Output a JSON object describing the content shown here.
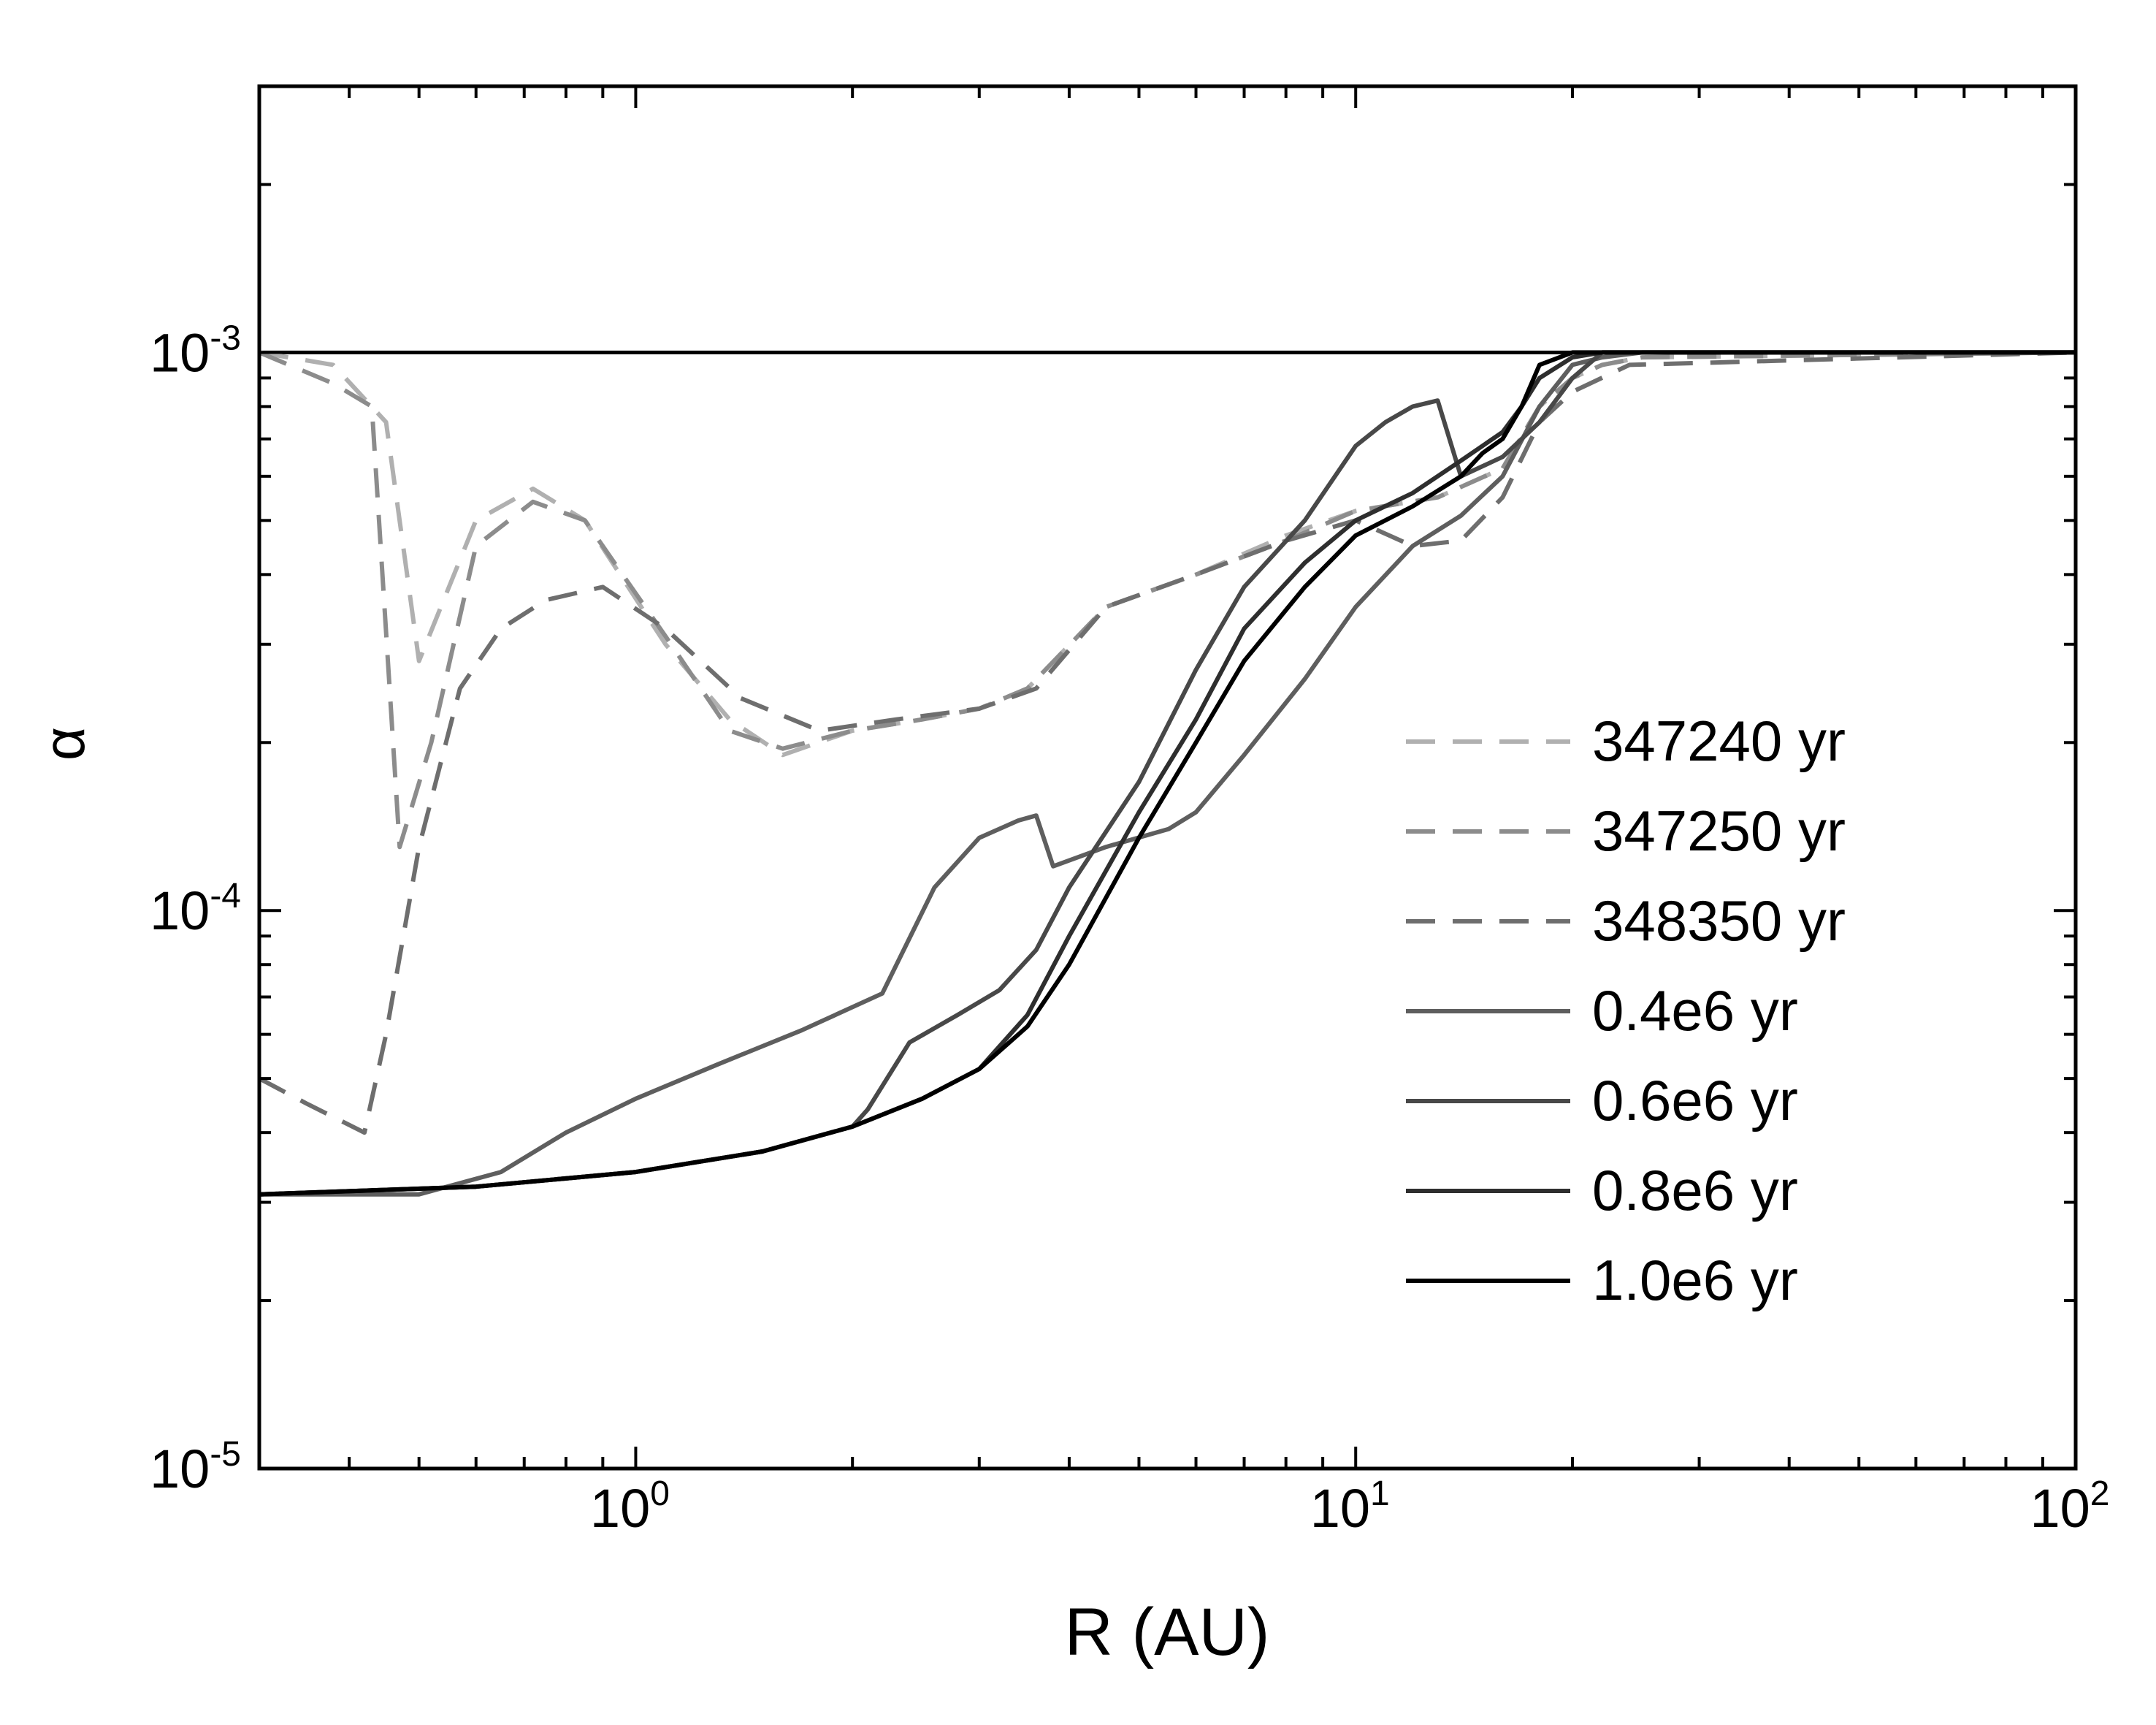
{
  "chart_data": {
    "type": "line",
    "title": "",
    "xlabel": "R (AU)",
    "ylabel": "α",
    "xscale": "log",
    "yscale": "log",
    "xlim": [
      0.3,
      100
    ],
    "ylim": [
      1e-05,
      0.003
    ],
    "grid": false,
    "legend_position": "right-center",
    "x_ticks": [
      {
        "value": 1,
        "base": "10",
        "exp": "0"
      },
      {
        "value": 10,
        "base": "10",
        "exp": "1"
      },
      {
        "value": 100,
        "base": "10",
        "exp": "2"
      }
    ],
    "y_ticks": [
      {
        "value": 1e-05,
        "base": "10",
        "exp": "-5"
      },
      {
        "value": 0.0001,
        "base": "10",
        "exp": "-4"
      },
      {
        "value": 0.001,
        "base": "10",
        "exp": "-3"
      }
    ],
    "reference_line": {
      "y": 0.001,
      "color": "#000000"
    },
    "series": [
      {
        "name": "347240 yr",
        "color": "#b0b0b0",
        "dashed": true,
        "x": [
          0.3,
          0.38,
          0.45,
          0.5,
          0.6,
          0.72,
          0.85,
          1.1,
          1.35,
          1.6,
          2.0,
          2.5,
          3.0,
          3.5,
          4.5,
          6,
          8,
          10,
          13,
          16,
          18,
          20,
          22,
          25,
          100
        ],
        "y": [
          0.001,
          0.00095,
          0.00075,
          0.00028,
          0.0005,
          0.00057,
          0.0005,
          0.0003,
          0.00022,
          0.00019,
          0.00021,
          0.00022,
          0.00023,
          0.00025,
          0.00035,
          0.0004,
          0.00047,
          0.00052,
          0.00055,
          0.00062,
          0.0008,
          0.0009,
          0.00095,
          0.00098,
          0.001
        ]
      },
      {
        "name": "347250 yr",
        "color": "#8c8c8c",
        "dashed": true,
        "x": [
          0.3,
          0.38,
          0.43,
          0.47,
          0.52,
          0.6,
          0.72,
          0.85,
          1.1,
          1.35,
          1.6,
          2.0,
          2.5,
          3.0,
          3.5,
          4.5,
          6,
          8,
          10,
          13,
          16,
          18,
          20,
          22,
          25,
          100
        ],
        "y": [
          0.001,
          0.00088,
          0.0008,
          0.00013,
          0.0002,
          0.00045,
          0.00054,
          0.0005,
          0.00031,
          0.00021,
          0.000195,
          0.00021,
          0.00022,
          0.00023,
          0.00025,
          0.00035,
          0.0004,
          0.00046,
          0.00052,
          0.00055,
          0.00062,
          0.0008,
          0.0009,
          0.00095,
          0.00098,
          0.001
        ]
      },
      {
        "name": "348350 yr",
        "color": "#6e6e6e",
        "dashed": true,
        "x": [
          0.3,
          0.35,
          0.42,
          0.45,
          0.5,
          0.57,
          0.65,
          0.75,
          0.9,
          1.1,
          1.4,
          1.8,
          2.3,
          3.0,
          3.6,
          4.5,
          6,
          8,
          10,
          12,
          14,
          16,
          18,
          20,
          24,
          100
        ],
        "y": [
          5e-05,
          4.5e-05,
          4e-05,
          6e-05,
          0.00013,
          0.00025,
          0.00032,
          0.00036,
          0.00038,
          0.00032,
          0.00024,
          0.00021,
          0.00022,
          0.00023,
          0.00025,
          0.00035,
          0.0004,
          0.00046,
          0.0005,
          0.00045,
          0.00046,
          0.00055,
          0.00075,
          0.00085,
          0.00095,
          0.001
        ]
      },
      {
        "name": "0.4e6 yr",
        "color": "#5e5e5e",
        "dashed": false,
        "x": [
          0.3,
          0.5,
          0.65,
          0.8,
          1.0,
          1.3,
          1.7,
          2.2,
          2.6,
          3.0,
          3.4,
          3.6,
          3.8,
          4.5,
          5.5,
          6.0,
          7.0,
          8.5,
          10,
          12,
          14,
          16,
          18,
          20,
          22,
          25,
          100
        ],
        "y": [
          3.1e-05,
          3.1e-05,
          3.4e-05,
          4e-05,
          4.6e-05,
          5.3e-05,
          6.1e-05,
          7.1e-05,
          0.00011,
          0.000135,
          0.000145,
          0.000148,
          0.00012,
          0.00013,
          0.00014,
          0.00015,
          0.00019,
          0.00026,
          0.00035,
          0.00045,
          0.00051,
          0.0006,
          0.0008,
          0.00095,
          0.00098,
          0.001,
          0.001
        ]
      },
      {
        "name": "0.6e6 yr",
        "color": "#484848",
        "dashed": false,
        "x": [
          0.3,
          0.6,
          1.0,
          1.5,
          2.0,
          2.1,
          2.4,
          2.8,
          3.2,
          3.6,
          4.0,
          5.0,
          6.0,
          7.0,
          8.5,
          10,
          11,
          12,
          13,
          14,
          16,
          18,
          20,
          22,
          100
        ],
        "y": [
          3.1e-05,
          3.2e-05,
          3.4e-05,
          3.7e-05,
          4.1e-05,
          4.4e-05,
          5.8e-05,
          6.5e-05,
          7.2e-05,
          8.5e-05,
          0.00011,
          0.00017,
          0.00027,
          0.00038,
          0.0005,
          0.00068,
          0.00075,
          0.0008,
          0.00082,
          0.0006,
          0.00065,
          0.00075,
          0.0009,
          0.001,
          0.001
        ]
      },
      {
        "name": "0.8e6 yr",
        "color": "#2e2e2e",
        "dashed": false,
        "x": [
          0.3,
          0.6,
          1.0,
          1.5,
          2.0,
          2.5,
          3.0,
          3.5,
          4.0,
          5.0,
          6.0,
          7.0,
          8.5,
          10,
          12,
          14,
          16,
          17,
          18,
          20,
          22,
          100
        ],
        "y": [
          3.1e-05,
          3.2e-05,
          3.4e-05,
          3.7e-05,
          4.1e-05,
          4.6e-05,
          5.2e-05,
          6.5e-05,
          9e-05,
          0.00015,
          0.00022,
          0.00032,
          0.00042,
          0.0005,
          0.00056,
          0.00064,
          0.00072,
          0.0008,
          0.0009,
          0.00098,
          0.001,
          0.001
        ]
      },
      {
        "name": "1.0e6 yr",
        "color": "#000000",
        "dashed": false,
        "x": [
          0.3,
          0.6,
          1.0,
          1.5,
          2.0,
          2.5,
          3.0,
          3.5,
          4.0,
          5.0,
          6.0,
          7.0,
          8.5,
          10,
          12,
          14,
          15,
          16,
          17,
          18,
          20,
          22,
          100
        ],
        "y": [
          3.1e-05,
          3.2e-05,
          3.4e-05,
          3.7e-05,
          4.1e-05,
          4.6e-05,
          5.2e-05,
          6.2e-05,
          8e-05,
          0.000135,
          0.0002,
          0.00028,
          0.00038,
          0.00047,
          0.00053,
          0.0006,
          0.00066,
          0.0007,
          0.0008,
          0.00095,
          0.001,
          0.001,
          0.001
        ]
      }
    ]
  }
}
